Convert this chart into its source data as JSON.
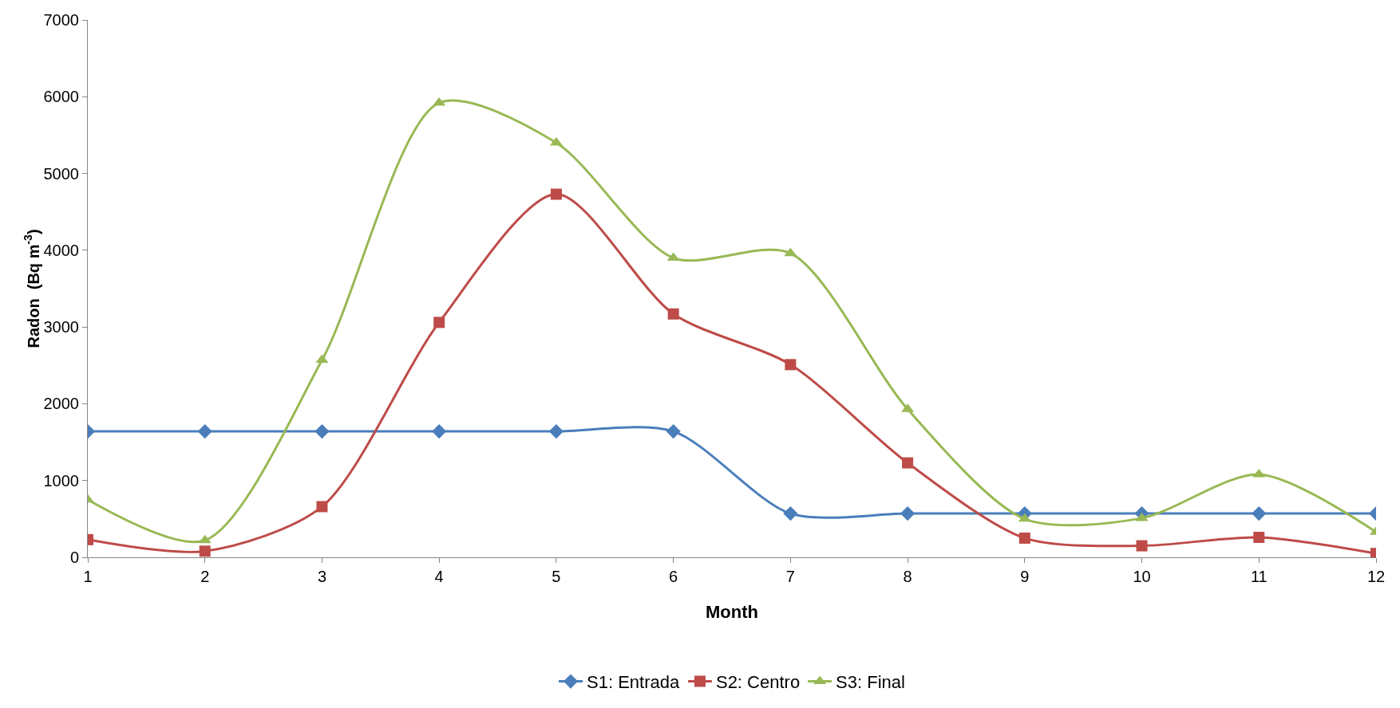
{
  "chart_data": {
    "type": "line",
    "xlabel": "Month",
    "ylabel": "Radon  (Bq m$^{-3}$)",
    "x": [
      1,
      2,
      3,
      4,
      5,
      6,
      7,
      8,
      9,
      10,
      11,
      12
    ],
    "xlim": [
      1,
      12
    ],
    "xticks": [
      1,
      2,
      3,
      4,
      5,
      6,
      7,
      8,
      9,
      10,
      11,
      12
    ],
    "ylim": [
      0,
      7000
    ],
    "yticks": [
      0,
      1000,
      2000,
      3000,
      4000,
      5000,
      6000,
      7000
    ],
    "grid": false,
    "legend": "bottom",
    "line_style": "solid",
    "series": [
      {
        "name": "S1: Entrada",
        "color": "#4a7ebb",
        "marker": "diamond",
        "values": [
          1640,
          1640,
          1640,
          1640,
          1640,
          1640,
          570,
          570,
          570,
          570,
          570,
          570
        ]
      },
      {
        "name": "S2: Centro",
        "color": "#be4b48",
        "marker": "square",
        "values": [
          230,
          80,
          660,
          3060,
          4730,
          3170,
          2510,
          1230,
          250,
          150,
          260,
          50
        ]
      },
      {
        "name": "S3: Final",
        "color": "#98b954",
        "marker": "triangle",
        "values": [
          750,
          220,
          2570,
          5920,
          5400,
          3900,
          3960,
          1930,
          500,
          510,
          1080,
          330
        ]
      }
    ]
  }
}
